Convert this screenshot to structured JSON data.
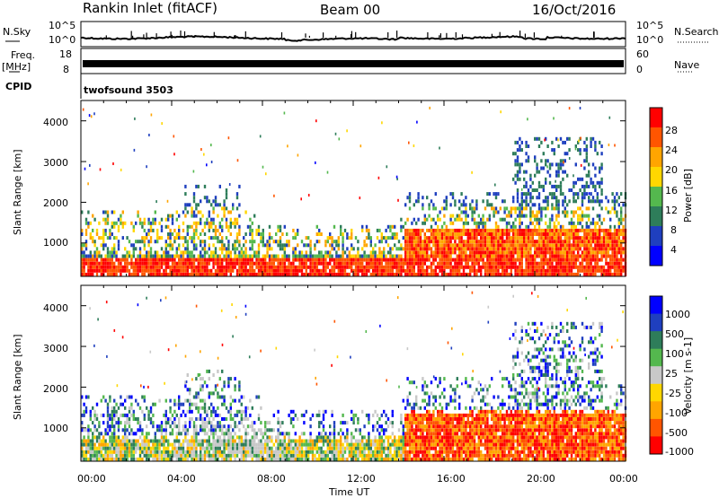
{
  "header": {
    "station": "Rankin Inlet (fitACF)",
    "beam": "Beam 00",
    "date": "16/Oct/2016"
  },
  "top_panels": {
    "nsky_label": "N.Sky",
    "nsearch_label": "N.Search",
    "freq_label": "Freq.",
    "freq_unit": "[MHz]",
    "nave_label": "Nave",
    "cpid_label": "CPID",
    "cpid_value": "twofsound 3503",
    "count_ticks": [
      "10^5",
      "10^0"
    ],
    "freq_ticks": [
      "18",
      "8"
    ],
    "nave_ticks": [
      "60",
      "0"
    ]
  },
  "chart_data": [
    {
      "type": "heatmap",
      "title": "Power",
      "xlabel": "",
      "ylabel": "Slant Range [km]",
      "colorbar_label": "Power [dB]",
      "xlim": [
        "00:00",
        "24:00"
      ],
      "ylim": [
        180,
        4500
      ],
      "y_ticks": [
        "1000",
        "2000",
        "3000",
        "4000"
      ],
      "colorbar_ticks": [
        "28",
        "24",
        "20",
        "16",
        "12",
        "8",
        "4"
      ],
      "colorscale": [
        "#0000ff",
        "#1f3fbf",
        "#2e7d5a",
        "#54b84e",
        "#ffd700",
        "#ffa500",
        "#ff5500",
        "#ff0000"
      ]
    },
    {
      "type": "heatmap",
      "title": "Velocity",
      "xlabel": "Time UT",
      "ylabel": "Slant Range [km]",
      "colorbar_label": "Velocity [m s-1]",
      "xlim": [
        "00:00",
        "24:00"
      ],
      "ylim": [
        180,
        4500
      ],
      "y_ticks": [
        "1000",
        "2000",
        "3000",
        "4000"
      ],
      "colorbar_ticks": [
        "1000",
        "500",
        "100",
        "25",
        "-25",
        "-100",
        "-500",
        "-1000"
      ],
      "colorscale": [
        "#ff0000",
        "#ff5500",
        "#ffa500",
        "#ffd700",
        "#c8c8c8",
        "#54b84e",
        "#2e7d5a",
        "#1f3fbf",
        "#0000ff"
      ]
    }
  ],
  "x_ticks": [
    "00:00",
    "04:00",
    "08:00",
    "12:00",
    "16:00",
    "20:00",
    "00:00"
  ]
}
